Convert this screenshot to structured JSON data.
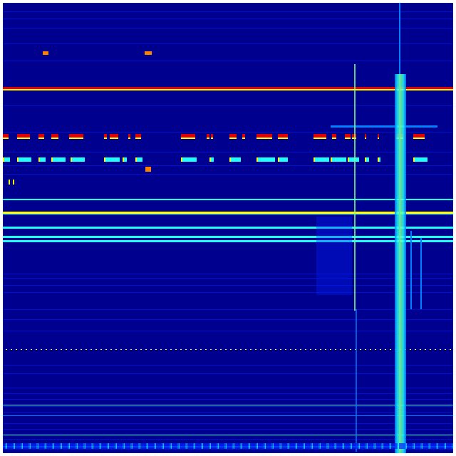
{
  "colormap": {
    "name": "jet",
    "low": "#00008f",
    "blue": "#0020ff",
    "light_blue": "#0080ff",
    "cyan": "#20ffff",
    "green": "#80ff80",
    "yellow": "#ffff00",
    "orange": "#ff8000",
    "red": "#e00000"
  }
}
